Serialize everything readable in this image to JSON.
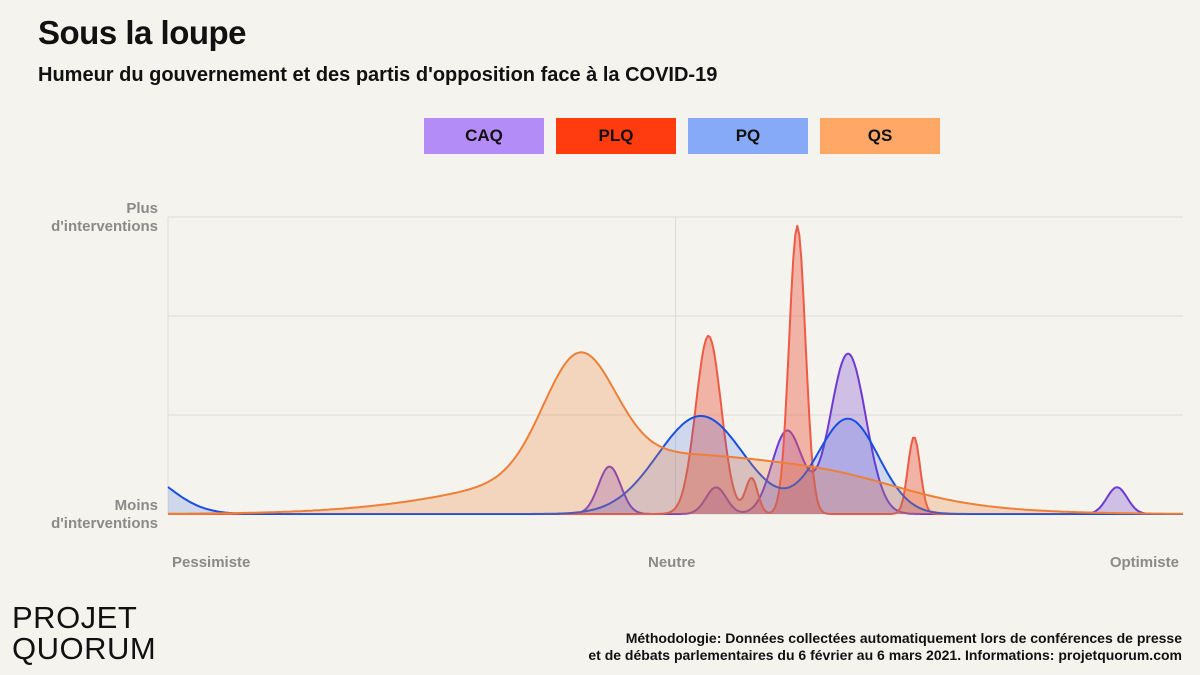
{
  "header": {
    "title": "Sous la loupe",
    "subtitle": "Humeur du gouvernement et des partis d'opposition face à la COVID-19"
  },
  "axis": {
    "y_top_line1": "Plus",
    "y_top_line2": "d'interventions",
    "y_bottom_line1": "Moins",
    "y_bottom_line2": "d'interventions",
    "x_left": "Pessimiste",
    "x_center": "Neutre",
    "x_right": "Optimiste"
  },
  "footer": {
    "logo_line1": "PROJET",
    "logo_line2": "QUORUM",
    "methodology_line1": "Méthodologie: Données collectées automatiquement lors de conférences de presse",
    "methodology_line2": "et de débats parlementaires du 6 février au 6 mars 2021. Informations: projetquorum.com"
  },
  "chart_data": {
    "type": "area",
    "xlim": [
      -1,
      1
    ],
    "ylim": [
      0,
      1
    ],
    "grid": true,
    "legend_position": "top-center",
    "series": [
      {
        "name": "CAQ",
        "color": "#6f3ad1",
        "legend_color": "#b48cf7",
        "fill_opacity": 0.28,
        "components": [
          {
            "mu": -0.13,
            "sigma": 0.022,
            "amp": 0.16
          },
          {
            "mu": 0.08,
            "sigma": 0.02,
            "amp": 0.09
          },
          {
            "mu": 0.34,
            "sigma": 0.035,
            "amp": 0.54
          },
          {
            "mu": 0.22,
            "sigma": 0.03,
            "amp": 0.28
          },
          {
            "mu": 0.87,
            "sigma": 0.02,
            "amp": 0.09
          }
        ]
      },
      {
        "name": "PLQ",
        "color": "#ee5a45",
        "legend_color": "#ff3b10",
        "fill_opacity": 0.42,
        "components": [
          {
            "mu": 0.065,
            "sigma": 0.025,
            "amp": 0.6
          },
          {
            "mu": 0.24,
            "sigma": 0.016,
            "amp": 0.97
          },
          {
            "mu": 0.47,
            "sigma": 0.012,
            "amp": 0.26
          },
          {
            "mu": 0.15,
            "sigma": 0.012,
            "amp": 0.12
          }
        ]
      },
      {
        "name": "PQ",
        "color": "#1a4fe0",
        "legend_color": "#86aaf7",
        "fill_opacity": 0.17,
        "components": [
          {
            "mu": -1.07,
            "sigma": 0.07,
            "amp": 0.15
          },
          {
            "mu": 0.05,
            "sigma": 0.085,
            "amp": 0.33
          },
          {
            "mu": 0.34,
            "sigma": 0.06,
            "amp": 0.32
          }
        ]
      },
      {
        "name": "QS",
        "color": "#ee7f36",
        "legend_color": "#ffa766",
        "fill_opacity": 0.26,
        "components": [
          {
            "mu": -0.19,
            "sigma": 0.07,
            "amp": 0.38
          },
          {
            "mu": 0.0,
            "sigma": 0.3,
            "amp": 0.2
          },
          {
            "mu": 0.34,
            "sigma": 0.12,
            "amp": 0.03
          }
        ]
      }
    ]
  }
}
